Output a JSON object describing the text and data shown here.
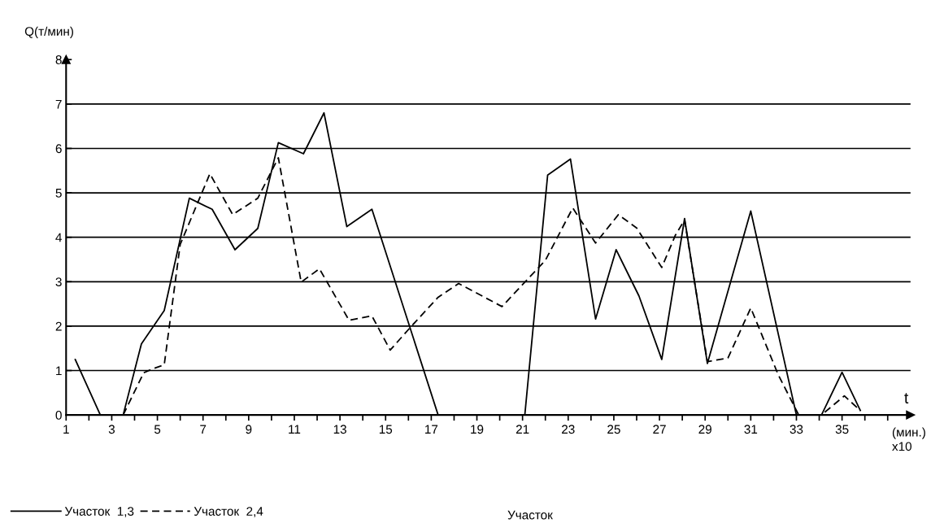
{
  "chart_data": {
    "type": "line",
    "ylabel": "Q(т/мин)",
    "xlabel": "t",
    "xlim": [
      1,
      38
    ],
    "ylim": [
      0,
      8
    ],
    "xticks": [
      1,
      {
        "value": 2,
        "label": null
      },
      3,
      {
        "value": 4,
        "label": null
      },
      5,
      {
        "value": 6,
        "label": null
      },
      7,
      {
        "value": 8,
        "label": null
      },
      9,
      {
        "value": 10,
        "label": null
      },
      11,
      {
        "value": 12,
        "label": null
      },
      13,
      {
        "value": 14,
        "label": null
      },
      15,
      {
        "value": 16,
        "label": null
      },
      17,
      {
        "value": 18,
        "label": null
      },
      19,
      {
        "value": 20,
        "label": null
      },
      21,
      {
        "value": 22,
        "label": null
      },
      23,
      {
        "value": 24,
        "label": null
      },
      25,
      {
        "value": 26,
        "label": null
      },
      27,
      {
        "value": 28,
        "label": null
      },
      29,
      {
        "value": 30,
        "label": null
      },
      31,
      {
        "value": 32,
        "label": null
      },
      33,
      {
        "value": 34,
        "label": null
      },
      35,
      {
        "value": 36,
        "label": null
      },
      {
        "value": 37,
        "label": null
      }
    ],
    "yticks": [
      0,
      1,
      2,
      3,
      4,
      5,
      6,
      7,
      8
    ],
    "grid": "y",
    "legend": "bottom left",
    "marker": "none",
    "series": [
      {
        "name": "Участок  1,3",
        "color": "#000000",
        "line_style": "solid",
        "x": [
          1.4,
          2.5,
          3.5,
          4.3,
          5.3,
          6.4,
          7.4,
          8.4,
          9.4,
          10.3,
          11.4,
          12.3,
          13.3,
          14.4,
          17.3,
          21.1,
          22.1,
          23.1,
          24.2,
          25.1,
          26.1,
          27.1,
          28.1,
          29.1,
          31.0,
          33.0,
          34.1,
          35.0,
          35.8
        ],
        "values": [
          1.25,
          0,
          0,
          1.6,
          2.35,
          4.88,
          4.63,
          3.72,
          4.2,
          6.13,
          5.88,
          6.8,
          4.24,
          4.63,
          0,
          0,
          5.4,
          5.76,
          2.16,
          3.72,
          2.68,
          1.25,
          4.42,
          1.16,
          4.59,
          0,
          0,
          0.96,
          0.1
        ]
      },
      {
        "name": "Участок  2,4",
        "color": "#000000",
        "line_style": "dashed",
        "x": [
          3.5,
          4.4,
          4.8,
          5.3,
          6.0,
          7.3,
          8.3,
          9.4,
          10.3,
          11.3,
          12.1,
          13.4,
          14.4,
          15.2,
          16.1,
          17.3,
          18.2,
          20.1,
          21.1,
          22.0,
          23.2,
          24.2,
          25.2,
          26.0,
          27.1,
          27.7,
          28.1,
          29.1,
          30.0,
          31.0,
          32.2,
          33.1,
          34.1,
          35.1,
          35.8
        ],
        "values": [
          0,
          0.95,
          1.04,
          1.13,
          3.84,
          5.43,
          4.51,
          4.88,
          5.79,
          2.99,
          3.29,
          2.13,
          2.23,
          1.46,
          1.98,
          2.65,
          2.96,
          2.44,
          2.99,
          3.48,
          4.66,
          3.87,
          4.51,
          4.21,
          3.32,
          4.05,
          4.39,
          1.2,
          1.28,
          2.41,
          0.91,
          0,
          0,
          0.43,
          0.1
        ]
      }
    ],
    "annotations": [
      "(мин.)\nx10",
      "Участок"
    ]
  }
}
